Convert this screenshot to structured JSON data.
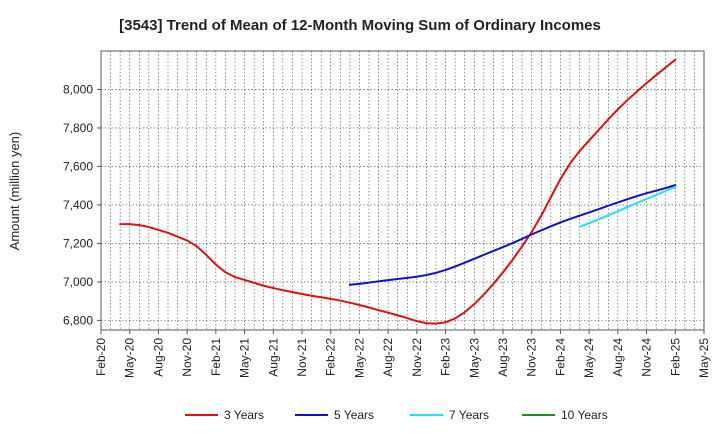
{
  "chart_data": {
    "type": "line",
    "title": "[3543]  Trend of Mean of 12-Month Moving Sum of Ordinary Incomes",
    "xlabel": "",
    "ylabel": "Amount (million yen)",
    "ylim": [
      6750,
      8200
    ],
    "yticks": [
      6800,
      7000,
      7200,
      7400,
      7600,
      7800,
      8000
    ],
    "ytick_labels": [
      "6,800",
      "7,000",
      "7,200",
      "7,400",
      "7,600",
      "7,800",
      "8,000"
    ],
    "x_start": "2020-02",
    "x_end": "2025-05",
    "xtick_labels": [
      "Feb-20",
      "May-20",
      "Aug-20",
      "Nov-20",
      "Feb-21",
      "May-21",
      "Aug-21",
      "Nov-21",
      "Feb-22",
      "May-22",
      "Aug-22",
      "Nov-22",
      "Feb-23",
      "May-23",
      "Aug-23",
      "Nov-23",
      "Feb-24",
      "May-24",
      "Aug-24",
      "Nov-24",
      "Feb-25",
      "May-25"
    ],
    "grid": true,
    "legend_position": "bottom",
    "series": [
      {
        "name": "3 Years",
        "color": "#dd1111",
        "points": [
          {
            "x": "2020-04",
            "y": 7300
          },
          {
            "x": "2020-05",
            "y": 7300
          },
          {
            "x": "2020-06",
            "y": 7295
          },
          {
            "x": "2020-07",
            "y": 7285
          },
          {
            "x": "2020-08",
            "y": 7270
          },
          {
            "x": "2020-09",
            "y": 7255
          },
          {
            "x": "2020-10",
            "y": 7235
          },
          {
            "x": "2020-11",
            "y": 7215
          },
          {
            "x": "2020-12",
            "y": 7185
          },
          {
            "x": "2021-01",
            "y": 7140
          },
          {
            "x": "2021-02",
            "y": 7090
          },
          {
            "x": "2021-03",
            "y": 7050
          },
          {
            "x": "2021-04",
            "y": 7025
          },
          {
            "x": "2021-05",
            "y": 7010
          },
          {
            "x": "2021-06",
            "y": 6995
          },
          {
            "x": "2021-07",
            "y": 6980
          },
          {
            "x": "2021-08",
            "y": 6968
          },
          {
            "x": "2021-09",
            "y": 6957
          },
          {
            "x": "2021-10",
            "y": 6947
          },
          {
            "x": "2021-11",
            "y": 6937
          },
          {
            "x": "2021-12",
            "y": 6928
          },
          {
            "x": "2022-01",
            "y": 6920
          },
          {
            "x": "2022-02",
            "y": 6912
          },
          {
            "x": "2022-03",
            "y": 6903
          },
          {
            "x": "2022-04",
            "y": 6892
          },
          {
            "x": "2022-05",
            "y": 6880
          },
          {
            "x": "2022-06",
            "y": 6867
          },
          {
            "x": "2022-07",
            "y": 6853
          },
          {
            "x": "2022-08",
            "y": 6840
          },
          {
            "x": "2022-09",
            "y": 6826
          },
          {
            "x": "2022-10",
            "y": 6812
          },
          {
            "x": "2022-11",
            "y": 6796
          },
          {
            "x": "2022-12",
            "y": 6785
          },
          {
            "x": "2023-01",
            "y": 6783
          },
          {
            "x": "2023-02",
            "y": 6790
          },
          {
            "x": "2023-03",
            "y": 6810
          },
          {
            "x": "2023-04",
            "y": 6842
          },
          {
            "x": "2023-05",
            "y": 6885
          },
          {
            "x": "2023-06",
            "y": 6935
          },
          {
            "x": "2023-07",
            "y": 6990
          },
          {
            "x": "2023-08",
            "y": 7050
          },
          {
            "x": "2023-09",
            "y": 7115
          },
          {
            "x": "2023-10",
            "y": 7185
          },
          {
            "x": "2023-11",
            "y": 7260
          },
          {
            "x": "2023-12",
            "y": 7345
          },
          {
            "x": "2024-01",
            "y": 7440
          },
          {
            "x": "2024-02",
            "y": 7535
          },
          {
            "x": "2024-03",
            "y": 7615
          },
          {
            "x": "2024-04",
            "y": 7680
          },
          {
            "x": "2024-05",
            "y": 7735
          },
          {
            "x": "2024-06",
            "y": 7790
          },
          {
            "x": "2024-07",
            "y": 7845
          },
          {
            "x": "2024-08",
            "y": 7897
          },
          {
            "x": "2024-09",
            "y": 7945
          },
          {
            "x": "2024-10",
            "y": 7990
          },
          {
            "x": "2024-11",
            "y": 8033
          },
          {
            "x": "2024-12",
            "y": 8075
          },
          {
            "x": "2025-01",
            "y": 8115
          },
          {
            "x": "2025-02",
            "y": 8155
          }
        ]
      },
      {
        "name": "5 Years",
        "color": "#1111cc",
        "points": [
          {
            "x": "2022-04",
            "y": 6985
          },
          {
            "x": "2022-05",
            "y": 6990
          },
          {
            "x": "2022-06",
            "y": 6996
          },
          {
            "x": "2022-07",
            "y": 7003
          },
          {
            "x": "2022-08",
            "y": 7009
          },
          {
            "x": "2022-09",
            "y": 7015
          },
          {
            "x": "2022-10",
            "y": 7021
          },
          {
            "x": "2022-11",
            "y": 7027
          },
          {
            "x": "2022-12",
            "y": 7036
          },
          {
            "x": "2023-01",
            "y": 7047
          },
          {
            "x": "2023-02",
            "y": 7062
          },
          {
            "x": "2023-03",
            "y": 7080
          },
          {
            "x": "2023-04",
            "y": 7100
          },
          {
            "x": "2023-05",
            "y": 7120
          },
          {
            "x": "2023-06",
            "y": 7141
          },
          {
            "x": "2023-07",
            "y": 7161
          },
          {
            "x": "2023-08",
            "y": 7181
          },
          {
            "x": "2023-09",
            "y": 7202
          },
          {
            "x": "2023-10",
            "y": 7224
          },
          {
            "x": "2023-11",
            "y": 7247
          },
          {
            "x": "2023-12",
            "y": 7268
          },
          {
            "x": "2024-01",
            "y": 7289
          },
          {
            "x": "2024-02",
            "y": 7309
          },
          {
            "x": "2024-03",
            "y": 7327
          },
          {
            "x": "2024-04",
            "y": 7344
          },
          {
            "x": "2024-05",
            "y": 7361
          },
          {
            "x": "2024-06",
            "y": 7378
          },
          {
            "x": "2024-07",
            "y": 7396
          },
          {
            "x": "2024-08",
            "y": 7413
          },
          {
            "x": "2024-09",
            "y": 7430
          },
          {
            "x": "2024-10",
            "y": 7446
          },
          {
            "x": "2024-11",
            "y": 7461
          },
          {
            "x": "2024-12",
            "y": 7474
          },
          {
            "x": "2025-01",
            "y": 7488
          },
          {
            "x": "2025-02",
            "y": 7503
          }
        ]
      },
      {
        "name": "7 Years",
        "color": "#22e0ee",
        "points": [
          {
            "x": "2024-04",
            "y": 7287
          },
          {
            "x": "2024-05",
            "y": 7305
          },
          {
            "x": "2024-06",
            "y": 7325
          },
          {
            "x": "2024-07",
            "y": 7346
          },
          {
            "x": "2024-08",
            "y": 7367
          },
          {
            "x": "2024-09",
            "y": 7389
          },
          {
            "x": "2024-10",
            "y": 7410
          },
          {
            "x": "2024-11",
            "y": 7431
          },
          {
            "x": "2024-12",
            "y": 7452
          },
          {
            "x": "2025-01",
            "y": 7473
          },
          {
            "x": "2025-02",
            "y": 7494
          }
        ]
      },
      {
        "name": "10 Years",
        "color": "#228822",
        "points": []
      }
    ]
  }
}
